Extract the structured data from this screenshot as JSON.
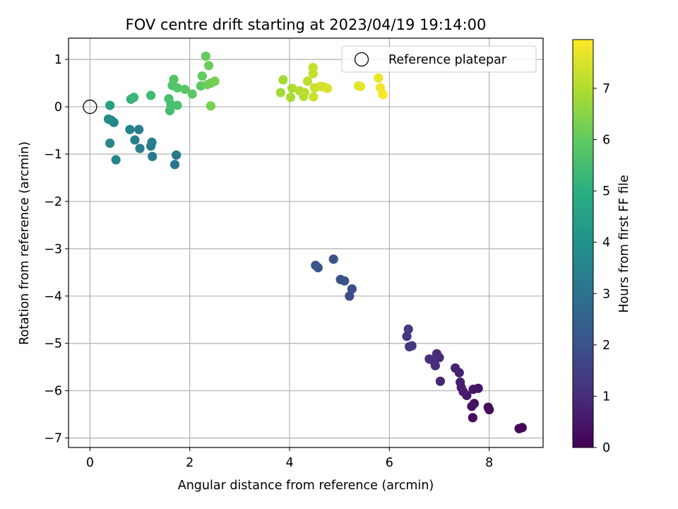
{
  "chart_data": {
    "type": "scatter",
    "title": "FOV centre drift starting at 2023/04/19 19:14:00",
    "xlabel": "Angular distance from reference (arcmin)",
    "ylabel": "Rotation from reference (arcmin)",
    "xlim": [
      -0.43,
      9.08
    ],
    "ylim": [
      -7.2,
      1.45
    ],
    "xticks": [
      0,
      2,
      4,
      6,
      8
    ],
    "yticks": [
      1,
      0,
      -1,
      -2,
      -3,
      -4,
      -5,
      -6,
      -7
    ],
    "grid": true,
    "legend": {
      "placement": "top-right",
      "entries": [
        {
          "label": "Reference platepar",
          "marker": "open-circle"
        }
      ]
    },
    "reference_point": {
      "x": 0,
      "y": 0
    },
    "colorbar": {
      "label": "Hours from first FF file",
      "colormap": "viridis",
      "range": [
        0,
        7.95
      ],
      "ticks": [
        0,
        1,
        2,
        3,
        4,
        5,
        6,
        7
      ]
    },
    "points": [
      {
        "x": 8.6,
        "y": -6.8,
        "h": 0.05
      },
      {
        "x": 8.66,
        "y": -6.78,
        "h": 0.1
      },
      {
        "x": 7.98,
        "y": -6.35,
        "h": 0.2
      },
      {
        "x": 8.0,
        "y": -6.4,
        "h": 0.25
      },
      {
        "x": 7.67,
        "y": -6.57,
        "h": 0.3
      },
      {
        "x": 7.65,
        "y": -6.33,
        "h": 0.35
      },
      {
        "x": 7.7,
        "y": -6.27,
        "h": 0.4
      },
      {
        "x": 7.78,
        "y": -5.95,
        "h": 0.45
      },
      {
        "x": 7.68,
        "y": -5.97,
        "h": 0.5
      },
      {
        "x": 7.55,
        "y": -6.1,
        "h": 0.55
      },
      {
        "x": 7.48,
        "y": -6.02,
        "h": 0.6
      },
      {
        "x": 7.44,
        "y": -5.93,
        "h": 0.65
      },
      {
        "x": 7.42,
        "y": -5.82,
        "h": 0.7
      },
      {
        "x": 7.4,
        "y": -5.62,
        "h": 0.75
      },
      {
        "x": 7.32,
        "y": -5.52,
        "h": 0.8
      },
      {
        "x": 7.02,
        "y": -5.8,
        "h": 0.85
      },
      {
        "x": 7.0,
        "y": -5.3,
        "h": 0.9
      },
      {
        "x": 6.95,
        "y": -5.22,
        "h": 0.95
      },
      {
        "x": 6.92,
        "y": -5.47,
        "h": 1.0
      },
      {
        "x": 6.88,
        "y": -5.37,
        "h": 1.05
      },
      {
        "x": 6.8,
        "y": -5.33,
        "h": 1.1
      },
      {
        "x": 6.45,
        "y": -5.05,
        "h": 1.2
      },
      {
        "x": 6.4,
        "y": -5.07,
        "h": 1.25
      },
      {
        "x": 6.35,
        "y": -4.85,
        "h": 1.3
      },
      {
        "x": 6.38,
        "y": -4.7,
        "h": 1.35
      },
      {
        "x": 5.2,
        "y": -4.0,
        "h": 1.8
      },
      {
        "x": 5.25,
        "y": -3.85,
        "h": 1.85
      },
      {
        "x": 5.1,
        "y": -3.68,
        "h": 1.9
      },
      {
        "x": 5.02,
        "y": -3.65,
        "h": 1.95
      },
      {
        "x": 4.88,
        "y": -3.22,
        "h": 2.0
      },
      {
        "x": 4.57,
        "y": -3.4,
        "h": 2.05
      },
      {
        "x": 4.52,
        "y": -3.35,
        "h": 2.1
      },
      {
        "x": 1.7,
        "y": -1.22,
        "h": 3.1
      },
      {
        "x": 1.73,
        "y": -1.02,
        "h": 3.15
      },
      {
        "x": 1.25,
        "y": -1.05,
        "h": 3.2
      },
      {
        "x": 1.22,
        "y": -0.83,
        "h": 3.25
      },
      {
        "x": 1.24,
        "y": -0.75,
        "h": 3.3
      },
      {
        "x": 1.0,
        "y": -0.88,
        "h": 3.35
      },
      {
        "x": 0.98,
        "y": -0.48,
        "h": 3.4
      },
      {
        "x": 0.9,
        "y": -0.7,
        "h": 3.45
      },
      {
        "x": 0.8,
        "y": -0.48,
        "h": 3.5
      },
      {
        "x": 0.52,
        "y": -1.12,
        "h": 3.6
      },
      {
        "x": 0.4,
        "y": -0.77,
        "h": 3.65
      },
      {
        "x": 0.48,
        "y": -0.33,
        "h": 3.7
      },
      {
        "x": 0.42,
        "y": -0.28,
        "h": 3.75
      },
      {
        "x": 0.37,
        "y": -0.26,
        "h": 3.8
      },
      {
        "x": 0.4,
        "y": 0.03,
        "h": 4.5
      },
      {
        "x": 0.82,
        "y": 0.16,
        "h": 5.2
      },
      {
        "x": 0.88,
        "y": 0.2,
        "h": 5.3
      },
      {
        "x": 1.22,
        "y": 0.24,
        "h": 5.4
      },
      {
        "x": 1.6,
        "y": -0.08,
        "h": 5.5
      },
      {
        "x": 1.62,
        "y": 0.05,
        "h": 5.55
      },
      {
        "x": 1.58,
        "y": 0.17,
        "h": 5.6
      },
      {
        "x": 1.75,
        "y": 0.03,
        "h": 5.65
      },
      {
        "x": 1.65,
        "y": 0.45,
        "h": 5.7
      },
      {
        "x": 1.68,
        "y": 0.58,
        "h": 5.75
      },
      {
        "x": 1.75,
        "y": 0.4,
        "h": 5.8
      },
      {
        "x": 1.9,
        "y": 0.37,
        "h": 5.85
      },
      {
        "x": 2.05,
        "y": 0.27,
        "h": 5.9
      },
      {
        "x": 2.22,
        "y": 0.44,
        "h": 5.95
      },
      {
        "x": 2.25,
        "y": 0.65,
        "h": 6.0
      },
      {
        "x": 2.32,
        "y": 1.07,
        "h": 6.05
      },
      {
        "x": 2.38,
        "y": 0.87,
        "h": 6.1
      },
      {
        "x": 2.35,
        "y": 0.47,
        "h": 6.15
      },
      {
        "x": 2.42,
        "y": 0.5,
        "h": 6.2
      },
      {
        "x": 2.5,
        "y": 0.54,
        "h": 6.25
      },
      {
        "x": 2.42,
        "y": 0.02,
        "h": 6.3
      },
      {
        "x": 3.82,
        "y": 0.3,
        "h": 6.8
      },
      {
        "x": 3.87,
        "y": 0.57,
        "h": 6.85
      },
      {
        "x": 4.02,
        "y": 0.2,
        "h": 6.9
      },
      {
        "x": 4.05,
        "y": 0.39,
        "h": 6.95
      },
      {
        "x": 4.2,
        "y": 0.34,
        "h": 7.0
      },
      {
        "x": 4.28,
        "y": 0.22,
        "h": 7.05
      },
      {
        "x": 4.3,
        "y": 0.3,
        "h": 7.1
      },
      {
        "x": 4.36,
        "y": 0.54,
        "h": 7.15
      },
      {
        "x": 4.47,
        "y": 0.83,
        "h": 7.2
      },
      {
        "x": 4.47,
        "y": 0.7,
        "h": 7.25
      },
      {
        "x": 4.5,
        "y": 0.4,
        "h": 7.3
      },
      {
        "x": 4.48,
        "y": 0.21,
        "h": 7.35
      },
      {
        "x": 4.62,
        "y": 0.43,
        "h": 7.4
      },
      {
        "x": 4.68,
        "y": 0.42,
        "h": 7.45
      },
      {
        "x": 4.76,
        "y": 0.39,
        "h": 7.5
      },
      {
        "x": 5.38,
        "y": 0.44,
        "h": 7.6
      },
      {
        "x": 5.42,
        "y": 0.43,
        "h": 7.65
      },
      {
        "x": 5.78,
        "y": 0.61,
        "h": 7.75
      },
      {
        "x": 5.82,
        "y": 0.4,
        "h": 7.8
      },
      {
        "x": 5.87,
        "y": 0.26,
        "h": 7.9
      }
    ]
  }
}
